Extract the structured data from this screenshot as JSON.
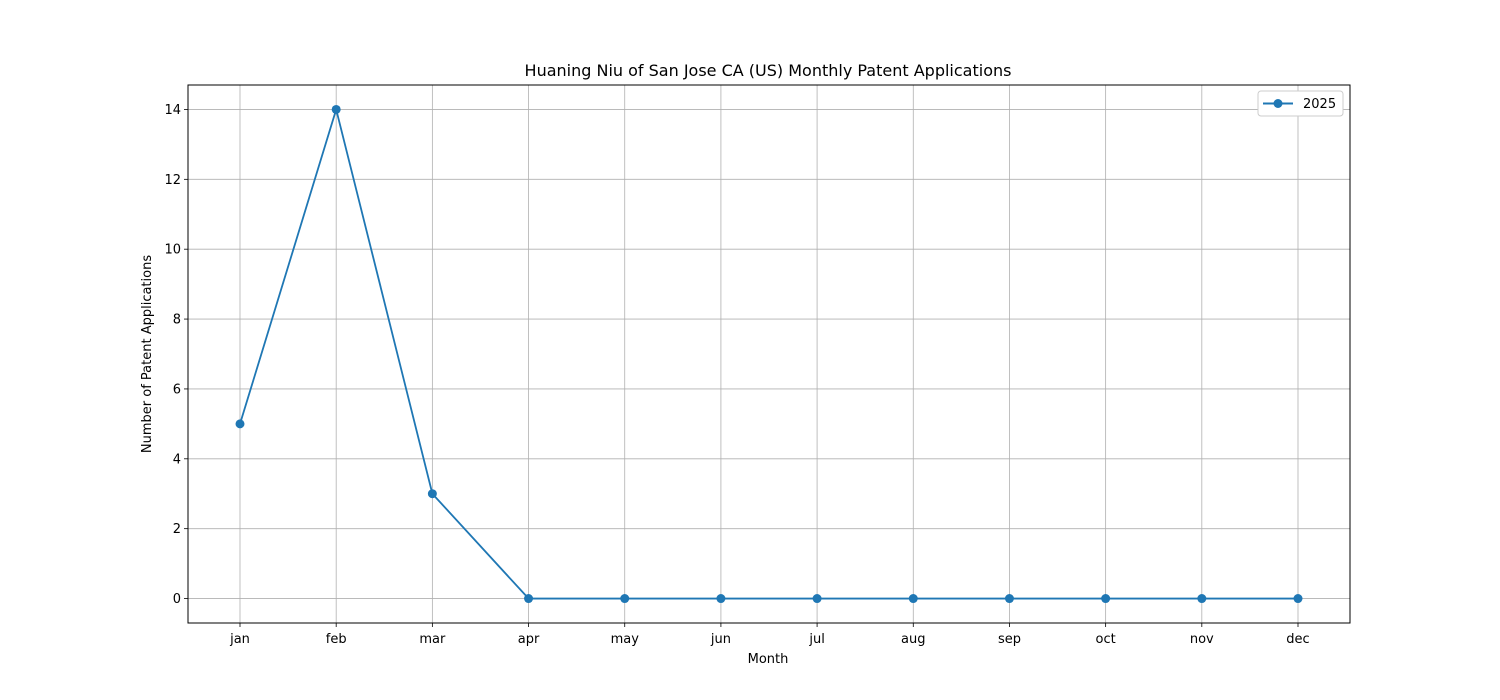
{
  "chart_data": {
    "type": "line",
    "title": "Huaning Niu of San Jose CA (US) Monthly Patent Applications",
    "xlabel": "Month",
    "ylabel": "Number of Patent Applications",
    "categories": [
      "jan",
      "feb",
      "mar",
      "apr",
      "may",
      "jun",
      "jul",
      "aug",
      "sep",
      "oct",
      "nov",
      "dec"
    ],
    "series": [
      {
        "name": "2025",
        "values": [
          5,
          14,
          3,
          0,
          0,
          0,
          0,
          0,
          0,
          0,
          0,
          0
        ],
        "color": "#1f77b4",
        "marker": "circle"
      }
    ],
    "ylim": [
      -0.7,
      14.7
    ],
    "yticks": [
      0,
      2,
      4,
      6,
      8,
      10,
      12,
      14
    ],
    "grid": true,
    "legend_position": "top-right"
  }
}
